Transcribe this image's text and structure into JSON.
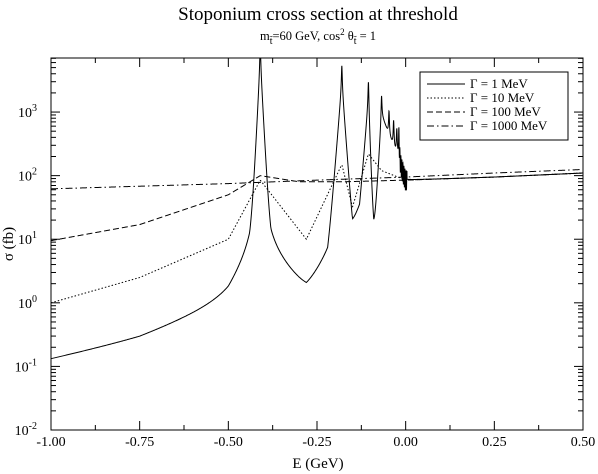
{
  "chart_data": {
    "type": "line",
    "title": "Stoponium cross section at threshold",
    "subtitle": {
      "m_symbol": "m",
      "m_sub": "t̃",
      "m_rest": "=60 GeV, cos",
      "sup": "2",
      "theta": " θ",
      "theta_sub": "t̃",
      "tail": " = 1"
    },
    "xlabel": "E (GeV)",
    "ylabel": "σ (fb)",
    "xlim": [
      -1.0,
      0.5
    ],
    "ylim_log10": [
      -2,
      3.85
    ],
    "y_scale": "log",
    "grid": false,
    "legend_position": "top-right",
    "x_ticks": [
      {
        "value": -1.0,
        "label": "-1.00"
      },
      {
        "value": -0.75,
        "label": "-0.75"
      },
      {
        "value": -0.5,
        "label": "-0.50"
      },
      {
        "value": -0.25,
        "label": "-0.25"
      },
      {
        "value": 0.0,
        "label": "0.00"
      },
      {
        "value": 0.25,
        "label": "0.25"
      },
      {
        "value": 0.5,
        "label": "0.50"
      }
    ],
    "y_ticks": [
      {
        "exp": -2,
        "base": "10",
        "sup": "-2"
      },
      {
        "exp": -1,
        "base": "10",
        "sup": "-1"
      },
      {
        "exp": 0,
        "base": "10",
        "sup": "0"
      },
      {
        "exp": 1,
        "base": "10",
        "sup": "1"
      },
      {
        "exp": 2,
        "base": "10",
        "sup": "2"
      },
      {
        "exp": 3,
        "base": "10",
        "sup": "3"
      }
    ],
    "resonances": [
      {
        "E": -0.41,
        "peak_1MeV": 6000
      },
      {
        "E": -0.18,
        "peak_1MeV": 2700
      },
      {
        "E": -0.105,
        "peak_1MeV": 1500
      },
      {
        "E": -0.068,
        "peak_1MeV": 900
      },
      {
        "E": -0.047,
        "peak_1MeV": 600
      },
      {
        "E": -0.034,
        "peak_1MeV": 450
      },
      {
        "E": -0.025,
        "peak_1MeV": 330
      },
      {
        "E": -0.019,
        "peak_1MeV": 250
      }
    ],
    "series": [
      {
        "name": "Γ = 1 MeV",
        "width_GeV": 0.001,
        "dash": "",
        "points": [
          [
            -1.0,
            0.095
          ],
          [
            -0.75,
            0.2
          ],
          [
            -0.5,
            0.7
          ],
          [
            -0.44,
            3.0
          ],
          [
            -0.41,
            6000
          ],
          [
            -0.38,
            5.0
          ],
          [
            -0.28,
            1.05
          ],
          [
            -0.22,
            4.5
          ],
          [
            -0.18,
            2700
          ],
          [
            -0.15,
            15
          ],
          [
            -0.13,
            30
          ],
          [
            -0.105,
            1500
          ],
          [
            -0.09,
            7
          ],
          [
            -0.068,
            900
          ],
          [
            0.0,
            85
          ],
          [
            0.25,
            95
          ],
          [
            0.5,
            110
          ]
        ]
      },
      {
        "name": "Γ = 10 MeV",
        "width_GeV": 0.01,
        "dash": "1.5 2",
        "points": [
          [
            -1.0,
            1.0
          ],
          [
            -0.75,
            2.5
          ],
          [
            -0.5,
            10
          ],
          [
            -0.41,
            85
          ],
          [
            -0.28,
            10
          ],
          [
            -0.18,
            150
          ],
          [
            -0.15,
            32
          ],
          [
            -0.105,
            220
          ],
          [
            -0.068,
            120
          ],
          [
            0.0,
            85
          ],
          [
            0.25,
            95
          ],
          [
            0.5,
            110
          ]
        ]
      },
      {
        "name": "Γ = 100 MeV",
        "width_GeV": 0.1,
        "dash": "6 3",
        "points": [
          [
            -1.0,
            9.5
          ],
          [
            -0.75,
            17
          ],
          [
            -0.5,
            50
          ],
          [
            -0.41,
            100
          ],
          [
            -0.3,
            80
          ],
          [
            -0.18,
            80
          ],
          [
            0.0,
            85
          ],
          [
            0.25,
            95
          ],
          [
            0.5,
            110
          ]
        ]
      },
      {
        "name": "Γ = 1000 MeV",
        "width_GeV": 1.0,
        "dash": "7 3 1.5 3",
        "points": [
          [
            -1.0,
            62
          ],
          [
            -0.5,
            75
          ],
          [
            -0.25,
            85
          ],
          [
            0.0,
            95
          ],
          [
            0.25,
            110
          ],
          [
            0.5,
            125
          ]
        ]
      }
    ]
  }
}
